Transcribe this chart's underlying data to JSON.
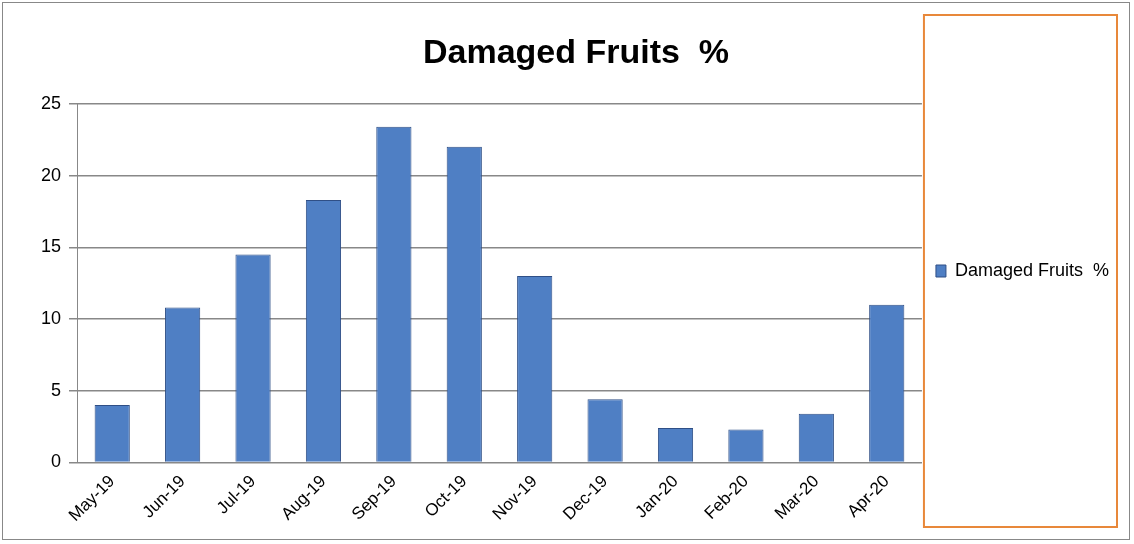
{
  "chart_data": {
    "type": "bar",
    "title": "Damaged Fruits  %",
    "categories": [
      "May-19",
      "Jun-19",
      "Jul-19",
      "Aug-19",
      "Sep-19",
      "Oct-19",
      "Nov-19",
      "Dec-19",
      "Jan-20",
      "Feb-20",
      "Mar-20",
      "Apr-20"
    ],
    "series": [
      {
        "name": "Damaged Fruits  %",
        "color": "#4f7fc4",
        "values": [
          4,
          10.8,
          14.5,
          18.3,
          23.4,
          22,
          13,
          4.4,
          2.4,
          2.3,
          3.4,
          11
        ]
      }
    ],
    "ylim": [
      0,
      25
    ],
    "yticks": [
      0,
      5,
      10,
      15,
      20,
      25
    ],
    "grid": "y",
    "legend": "right"
  }
}
